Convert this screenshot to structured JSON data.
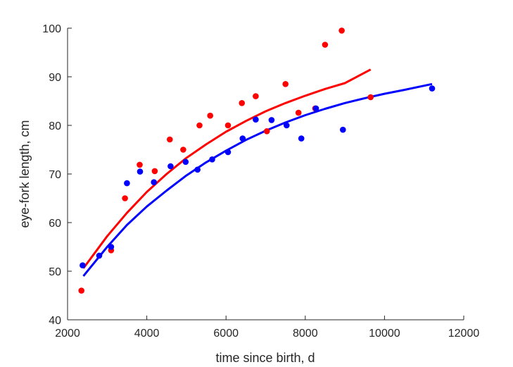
{
  "chart_data": {
    "type": "scatter",
    "title": "",
    "xlabel": "time since birth, d",
    "ylabel": "eye-fork length, cm",
    "xlim": [
      2000,
      12000
    ],
    "ylim": [
      40,
      100
    ],
    "xticks": [
      2000,
      4000,
      6000,
      8000,
      10000,
      12000
    ],
    "yticks": [
      40,
      50,
      60,
      70,
      80,
      90,
      100
    ],
    "grid": false,
    "series": [
      {
        "name": "red",
        "color": "#ff0000",
        "points": [
          [
            2350,
            46.0
          ],
          [
            3100,
            54.3
          ],
          [
            3450,
            65.0
          ],
          [
            3820,
            71.9
          ],
          [
            4200,
            70.6
          ],
          [
            4580,
            77.1
          ],
          [
            4920,
            75.0
          ],
          [
            5330,
            80.0
          ],
          [
            5600,
            82.0
          ],
          [
            6050,
            80.0
          ],
          [
            6400,
            84.6
          ],
          [
            6750,
            86.0
          ],
          [
            7030,
            78.8
          ],
          [
            7500,
            88.5
          ],
          [
            7830,
            82.6
          ],
          [
            8250,
            83.5
          ],
          [
            8500,
            96.6
          ],
          [
            8920,
            99.5
          ],
          [
            9650,
            85.8
          ]
        ],
        "fit": [
          [
            2400,
            50.6
          ],
          [
            3000,
            57.2
          ],
          [
            3500,
            62.0
          ],
          [
            4000,
            66.3
          ],
          [
            4500,
            70.0
          ],
          [
            5000,
            73.3
          ],
          [
            5500,
            76.1
          ],
          [
            6000,
            78.7
          ],
          [
            6500,
            80.9
          ],
          [
            7000,
            82.9
          ],
          [
            7500,
            84.6
          ],
          [
            8000,
            86.1
          ],
          [
            8500,
            87.5
          ],
          [
            9000,
            88.7
          ],
          [
            9650,
            91.5
          ]
        ]
      },
      {
        "name": "blue",
        "color": "#0000ff",
        "points": [
          [
            2380,
            51.2
          ],
          [
            2800,
            53.2
          ],
          [
            3100,
            55.0
          ],
          [
            3500,
            68.1
          ],
          [
            3830,
            70.5
          ],
          [
            4180,
            68.3
          ],
          [
            4600,
            71.6
          ],
          [
            4980,
            72.5
          ],
          [
            5280,
            70.9
          ],
          [
            5650,
            73.0
          ],
          [
            6050,
            74.5
          ],
          [
            6420,
            77.3
          ],
          [
            6750,
            81.2
          ],
          [
            7150,
            81.1
          ],
          [
            7530,
            80.0
          ],
          [
            7900,
            77.3
          ],
          [
            8270,
            83.5
          ],
          [
            8950,
            79.1
          ],
          [
            11200,
            87.6
          ]
        ],
        "fit": [
          [
            2400,
            49.0
          ],
          [
            3000,
            55.0
          ],
          [
            3500,
            59.5
          ],
          [
            4000,
            63.3
          ],
          [
            4500,
            66.6
          ],
          [
            5000,
            69.7
          ],
          [
            5500,
            72.4
          ],
          [
            6000,
            74.8
          ],
          [
            6500,
            77.0
          ],
          [
            7000,
            78.9
          ],
          [
            7500,
            80.6
          ],
          [
            8000,
            82.1
          ],
          [
            8500,
            83.4
          ],
          [
            9000,
            84.6
          ],
          [
            9500,
            85.6
          ],
          [
            10000,
            86.5
          ],
          [
            10500,
            87.3
          ],
          [
            11200,
            88.5
          ]
        ]
      }
    ]
  }
}
